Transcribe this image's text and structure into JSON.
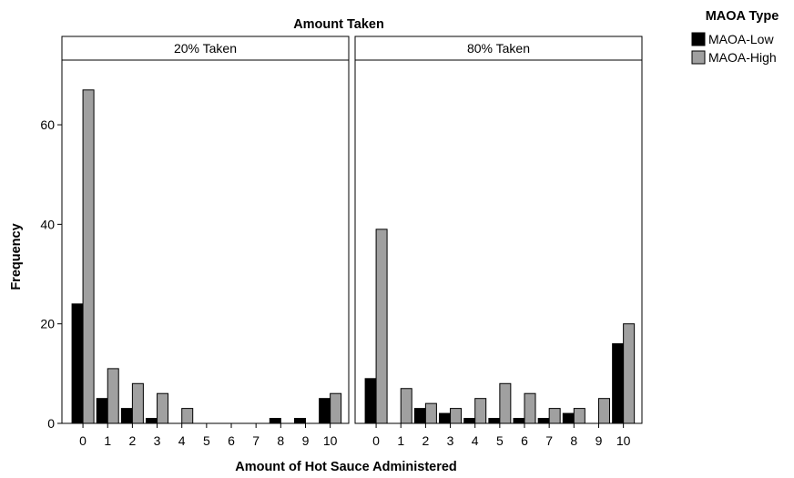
{
  "chart_data": {
    "type": "bar",
    "title": "Amount Taken",
    "xlabel": "Amount of Hot Sauce Administered",
    "ylabel": "Frequency",
    "ylim": [
      0,
      73
    ],
    "yticks": [
      0,
      20,
      40,
      60
    ],
    "categories": [
      "0",
      "1",
      "2",
      "3",
      "4",
      "5",
      "6",
      "7",
      "8",
      "9",
      "10"
    ],
    "legend": {
      "title": "MAOA Type",
      "placement": "top-right"
    },
    "series_colors": [
      "#000000",
      "#a0a0a0"
    ],
    "series_names": [
      "MAOA-Low",
      "MAOA-High"
    ],
    "panels": [
      {
        "title": "20% Taken",
        "series": [
          {
            "name": "MAOA-Low",
            "values": [
              24,
              5,
              3,
              1,
              0,
              0,
              0,
              0,
              1,
              1,
              5
            ]
          },
          {
            "name": "MAOA-High",
            "values": [
              67,
              11,
              8,
              6,
              3,
              0,
              0,
              0,
              0,
              0,
              6
            ]
          }
        ]
      },
      {
        "title": "80% Taken",
        "series": [
          {
            "name": "MAOA-Low",
            "values": [
              9,
              0,
              3,
              2,
              1,
              1,
              1,
              1,
              2,
              0,
              16
            ]
          },
          {
            "name": "MAOA-High",
            "values": [
              39,
              7,
              4,
              3,
              5,
              8,
              6,
              3,
              3,
              5,
              20
            ]
          }
        ]
      }
    ]
  }
}
